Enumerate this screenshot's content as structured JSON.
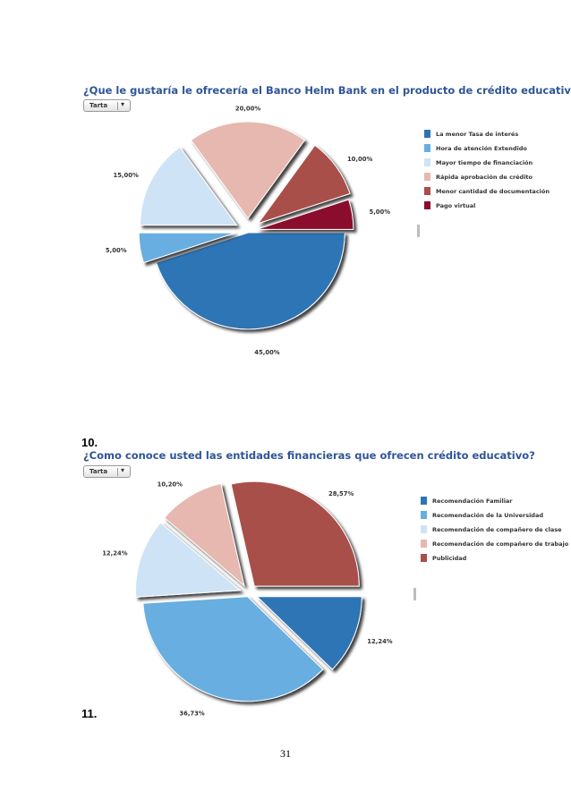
{
  "chart_data": [
    {
      "type": "pie",
      "title": "¿Que le gustaría le ofrecería el Banco Helm Bank en el producto de crédito educativo?",
      "dropdown": "Tarta",
      "legend_position": "right",
      "slices": [
        {
          "label": "La menor Tasa de interés",
          "value": 45.0,
          "display": "45,00%",
          "color": "#2e75b6"
        },
        {
          "label": "Hora de atención Extendido",
          "value": 5.0,
          "display": "5,00%",
          "color": "#67aee0"
        },
        {
          "label": "Mayor tiempo de financiación",
          "value": 15.0,
          "display": "15,00%",
          "color": "#cfe3f7"
        },
        {
          "label": "Rápida aprobación de crédito",
          "value": 20.0,
          "display": "20,00%",
          "color": "#e6b8b0"
        },
        {
          "label": "Menor cantidad de documentación",
          "value": 10.0,
          "display": "10,00%",
          "color": "#a94f4a"
        },
        {
          "label": "Pago virtual",
          "value": 5.0,
          "display": "5,00%",
          "color": "#8b0a2f"
        }
      ]
    },
    {
      "type": "pie",
      "title": "¿Como conoce usted las entidades financieras que ofrecen crédito educativo?",
      "dropdown": "Tarta",
      "legend_position": "right",
      "slices": [
        {
          "label": "Recomendación Familiar",
          "value": 12.24,
          "display": "12,24%",
          "color": "#2e75b6"
        },
        {
          "label": "Recomendación de la Universidad",
          "value": 36.73,
          "display": "36,73%",
          "color": "#67aee0"
        },
        {
          "label": "Recomendación de compañero de clase",
          "value": 12.24,
          "display": "12,24%",
          "color": "#cfe3f7"
        },
        {
          "label": "Recomendación de compañero de trabajo",
          "value": 10.2,
          "display": "10,20%",
          "color": "#e6b8b0"
        },
        {
          "label": "Publicidad",
          "value": 28.57,
          "display": "28,57%",
          "color": "#a94f4a"
        }
      ]
    }
  ],
  "section_numbers": [
    "10.",
    "11."
  ],
  "page_number": "31"
}
